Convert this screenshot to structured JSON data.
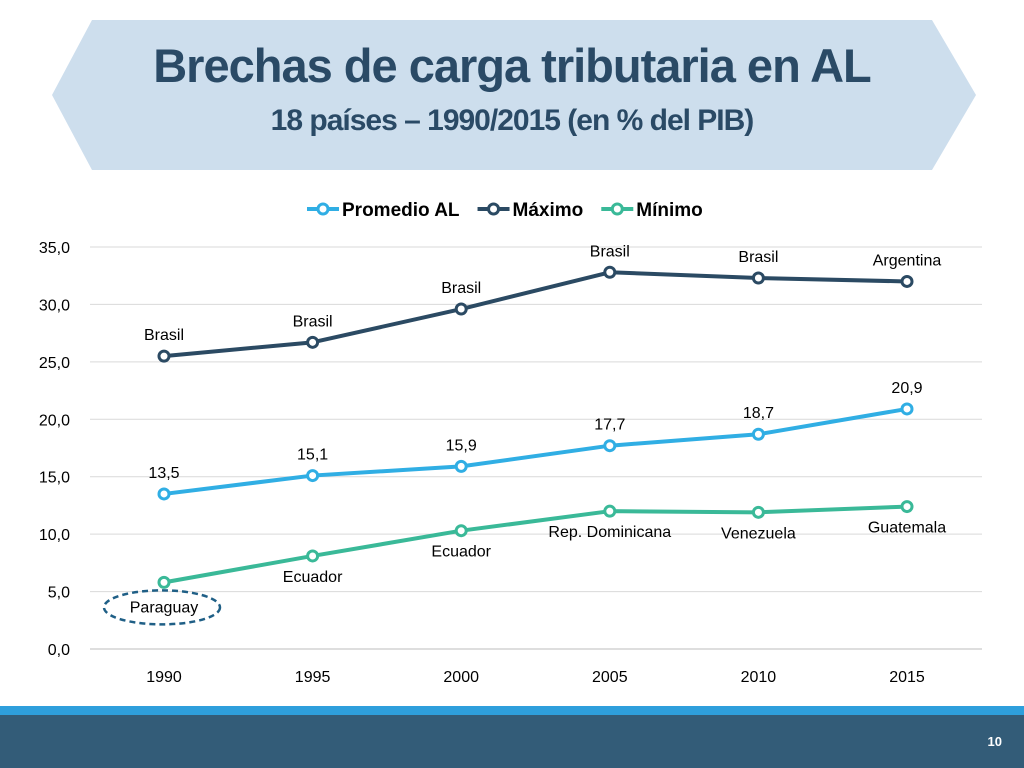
{
  "slide": {
    "title": "Brechas de carga tributaria en AL",
    "subtitle": "18 países – 1990/2015 (en % del PIB)",
    "page_number": "10"
  },
  "colors": {
    "banner": "#cddeed",
    "title_text": "#2a4a66",
    "footer_bar": "#335c78",
    "footer_stripe": "#2e9fdc"
  },
  "chart_data": {
    "type": "line",
    "x": [
      "1990",
      "1995",
      "2000",
      "2005",
      "2010",
      "2015"
    ],
    "ylim": [
      0,
      35
    ],
    "yticks": [
      "0,0",
      "5,0",
      "10,0",
      "15,0",
      "20,0",
      "25,0",
      "30,0",
      "35,0"
    ],
    "grid": true,
    "legend_position": "top",
    "series": [
      {
        "name": "Promedio AL",
        "color": "#30aee4",
        "values": [
          13.5,
          15.1,
          15.9,
          17.7,
          18.7,
          20.9
        ],
        "labels": [
          "13,5",
          "15,1",
          "15,9",
          "17,7",
          "18,7",
          "20,9"
        ],
        "label_position": "above"
      },
      {
        "name": "Máximo",
        "color": "#2b4a63",
        "values": [
          25.5,
          26.7,
          29.6,
          32.8,
          32.3,
          32.0
        ],
        "labels": [
          "Brasil",
          "Brasil",
          "Brasil",
          "Brasil",
          "Brasil",
          "Argentina"
        ],
        "label_position": "above"
      },
      {
        "name": "Mínimo",
        "color": "#3ab998",
        "values": [
          5.8,
          8.1,
          10.3,
          12.0,
          11.9,
          12.4
        ],
        "labels": [
          "Paraguay",
          "Ecuador",
          "Ecuador",
          "Rep. Dominicana",
          "Venezuela",
          "Guatemala"
        ],
        "label_position": "below",
        "highlighted_label": "Paraguay"
      }
    ]
  }
}
